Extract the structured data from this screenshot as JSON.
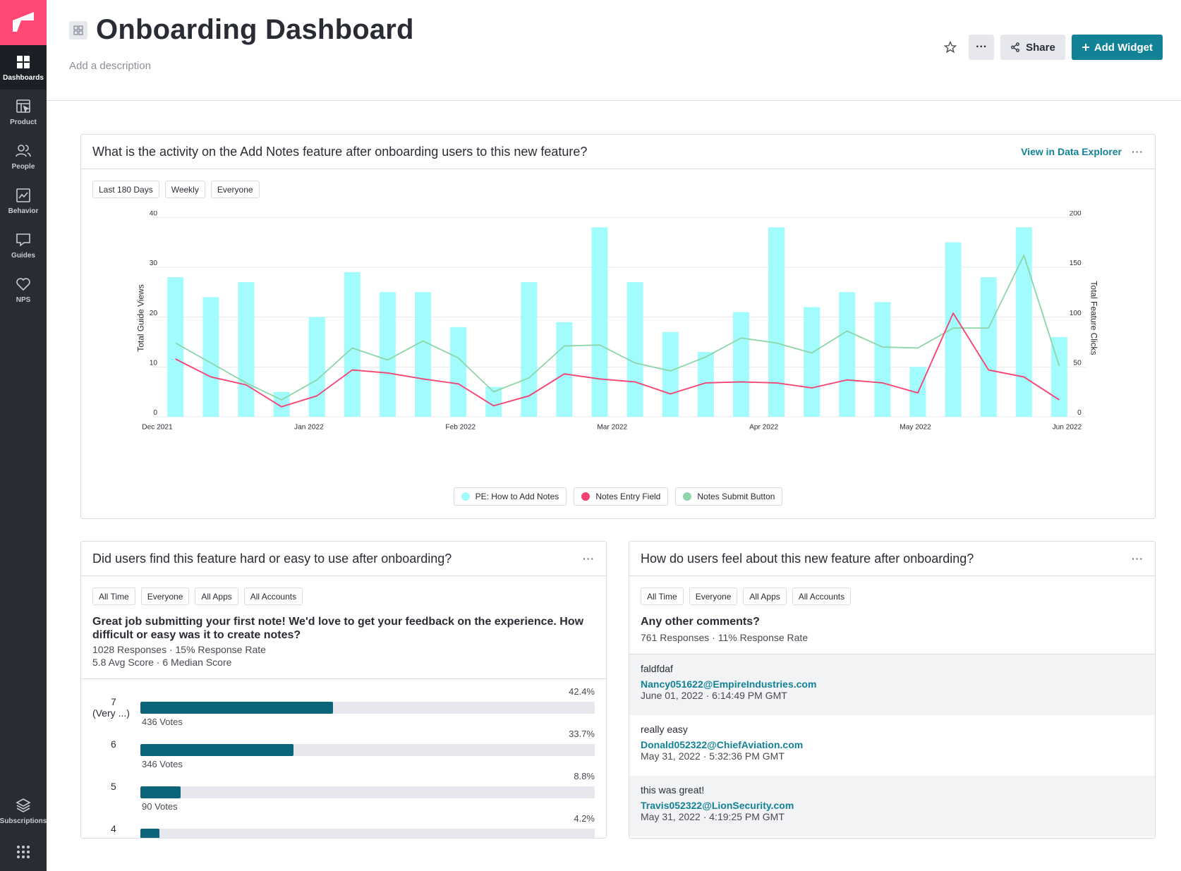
{
  "sidebar": {
    "items": [
      {
        "label": "Dashboards",
        "icon": "grid-icon"
      },
      {
        "label": "Product",
        "icon": "product-icon"
      },
      {
        "label": "People",
        "icon": "people-icon"
      },
      {
        "label": "Behavior",
        "icon": "behavior-icon"
      },
      {
        "label": "Guides",
        "icon": "guides-icon"
      },
      {
        "label": "NPS",
        "icon": "heart-icon"
      }
    ],
    "subscriptions_label": "Subscriptions"
  },
  "header": {
    "title": "Onboarding Dashboard",
    "description_placeholder": "Add a description",
    "more_label": "···",
    "share_label": "Share",
    "add_widget_label": "Add Widget"
  },
  "colors": {
    "accent": "#128297",
    "brand": "#ff4876",
    "guide_views": "#a2fcfd",
    "entry_field": "#f5436f",
    "submit_button": "#8ed6a9",
    "poll_bar": "#0c6478"
  },
  "activity_widget": {
    "title": "What is the activity on the Add Notes feature after onboarding users to this new feature?",
    "explore_link": "View in Data Explorer",
    "more_label": "···",
    "filters": [
      "Last 180 Days",
      "Weekly",
      "Everyone"
    ]
  },
  "chart_data": {
    "type": "bar",
    "title": "",
    "x_tick_labels": [
      "Dec 2021",
      "Jan 2022",
      "Feb 2022",
      "Mar 2022",
      "Apr 2022",
      "May 2022",
      "Jun 2022"
    ],
    "ylabel": "Total Guide Views",
    "y2label": "Total Feature Clicks",
    "ylim": [
      0,
      40
    ],
    "y2lim": [
      0,
      200
    ],
    "y_ticks": [
      0,
      10,
      20,
      30,
      40
    ],
    "y2_ticks": [
      0,
      50,
      100,
      150,
      200
    ],
    "grid": true,
    "legend_position": "bottom-center",
    "series": [
      {
        "name": "PE: How to Add Notes",
        "type": "bar",
        "axis": "left",
        "values": [
          28,
          24,
          27,
          5,
          20,
          29,
          25,
          25,
          18,
          6,
          27,
          19,
          38,
          27,
          17,
          13,
          21,
          38,
          22,
          25,
          23,
          10,
          35,
          28,
          38,
          16
        ]
      },
      {
        "name": "Notes Entry Field",
        "type": "line",
        "axis": "right",
        "values": [
          58,
          40,
          32,
          10,
          21,
          47,
          44,
          38,
          33,
          11,
          21,
          43,
          38,
          35,
          23,
          34,
          35,
          34,
          29,
          37,
          34,
          24,
          104,
          47,
          40,
          17
        ]
      },
      {
        "name": "Notes Submit Button",
        "type": "line",
        "axis": "right",
        "values": [
          74,
          54,
          34,
          17,
          37,
          69,
          57,
          76,
          59,
          25,
          39,
          71,
          72,
          54,
          46,
          60,
          79,
          74,
          64,
          86,
          70,
          69,
          89,
          89,
          162,
          51
        ]
      }
    ]
  },
  "ease_widget": {
    "title": "Did users find this feature hard or easy to use after onboarding?",
    "more_label": "···",
    "filters": [
      "All Time",
      "Everyone",
      "All Apps",
      "All Accounts"
    ],
    "question": "Great job submitting your first note! We'd love to get your feedback on the experience. How difficult or easy was it to create notes?",
    "stats_line1": "1028 Responses · 15% Response Rate",
    "stats_line2": "5.8 Avg Score · 6 Median Score",
    "rows": [
      {
        "score": "7",
        "sublabel": "(Very ...)",
        "pct_label": "42.4%",
        "pct": 42.4,
        "votes": "436 Votes"
      },
      {
        "score": "6",
        "sublabel": "",
        "pct_label": "33.7%",
        "pct": 33.7,
        "votes": "346 Votes"
      },
      {
        "score": "5",
        "sublabel": "",
        "pct_label": "8.8%",
        "pct": 8.8,
        "votes": "90 Votes"
      },
      {
        "score": "4",
        "sublabel": "",
        "pct_label": "4.2%",
        "pct": 4.2,
        "votes": ""
      }
    ]
  },
  "feel_widget": {
    "title": "How do users feel about this new feature after onboarding?",
    "more_label": "···",
    "filters": [
      "All Time",
      "Everyone",
      "All Apps",
      "All Accounts"
    ],
    "question": "Any other comments?",
    "stats_line1": "761 Responses · 11% Response Rate",
    "comments": [
      {
        "text": "faldfdaf",
        "email": "Nancy051622@EmpireIndustries.com",
        "date": "June 01, 2022 · 6:14:49 PM GMT"
      },
      {
        "text": "really easy",
        "email": "Donald052322@ChiefAviation.com",
        "date": "May 31, 2022 · 5:32:36 PM GMT"
      },
      {
        "text": "this was great!",
        "email": "Travis052322@LionSecurity.com",
        "date": "May 31, 2022 · 4:19:25 PM GMT"
      }
    ]
  }
}
